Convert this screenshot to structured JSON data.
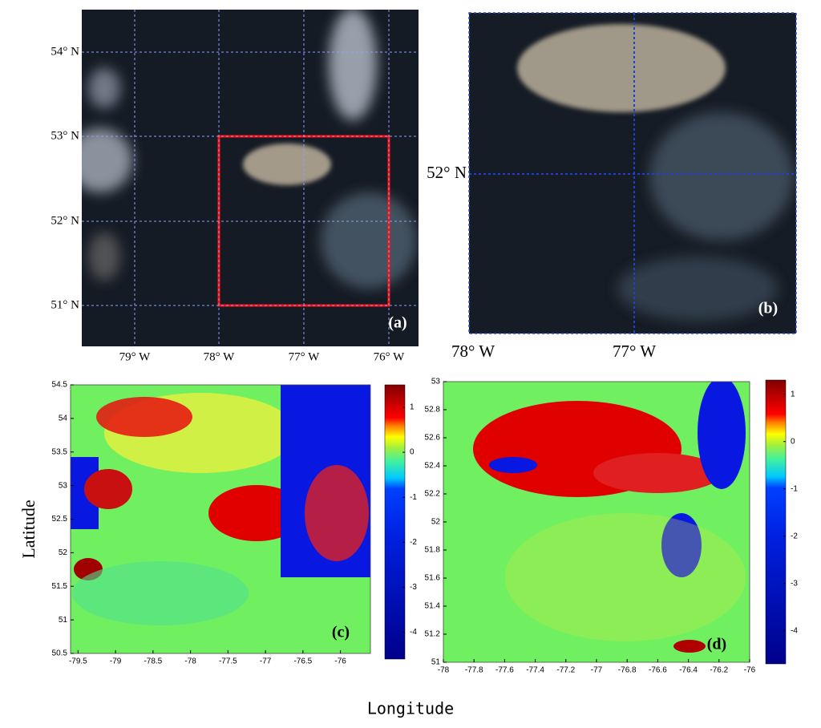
{
  "panels": [
    {
      "label": "(a)",
      "xtick_labels": [
        "79° W",
        "78° W",
        "77° W",
        "76° W"
      ],
      "ytick_labels": [
        "54° N",
        "53° N",
        "52° N",
        "51° N"
      ]
    },
    {
      "label": "(b)",
      "xtick_labels": [
        "78° W",
        "77° W"
      ],
      "ytick_labels": [
        "52° N"
      ]
    }
  ],
  "chart_data": [
    {
      "type": "heatmap",
      "label": "(c)",
      "xlim": [
        -79.6,
        -75.6
      ],
      "ylim": [
        50.5,
        54.5
      ],
      "xticks": [
        -79.5,
        -79,
        -78.5,
        -78,
        -77.5,
        -77,
        -76.5,
        -76
      ],
      "yticks": [
        50.5,
        51,
        51.5,
        52,
        52.5,
        53,
        53.5,
        54,
        54.5
      ],
      "colorbar_lim": [
        -4.6,
        1.5
      ],
      "colorbar_ticks": [
        -4,
        -3,
        -2,
        -1,
        0,
        1
      ]
    },
    {
      "type": "heatmap",
      "label": "(d)",
      "xlim": [
        -78,
        -76
      ],
      "ylim": [
        51,
        53
      ],
      "xticks": [
        -78,
        -77.8,
        -77.6,
        -77.4,
        -77.2,
        -77,
        -76.8,
        -76.6,
        -76.4,
        -76.2,
        -76
      ],
      "yticks": [
        51,
        51.2,
        51.4,
        51.6,
        51.8,
        52,
        52.2,
        52.4,
        52.6,
        52.8,
        53
      ],
      "colorbar_lim": [
        -4.7,
        1.3
      ],
      "colorbar_ticks": [
        -4,
        -3,
        -2,
        -1,
        0,
        1
      ]
    }
  ],
  "figure": {
    "xlabel": "Longitude",
    "ylabel": "Latitude"
  }
}
